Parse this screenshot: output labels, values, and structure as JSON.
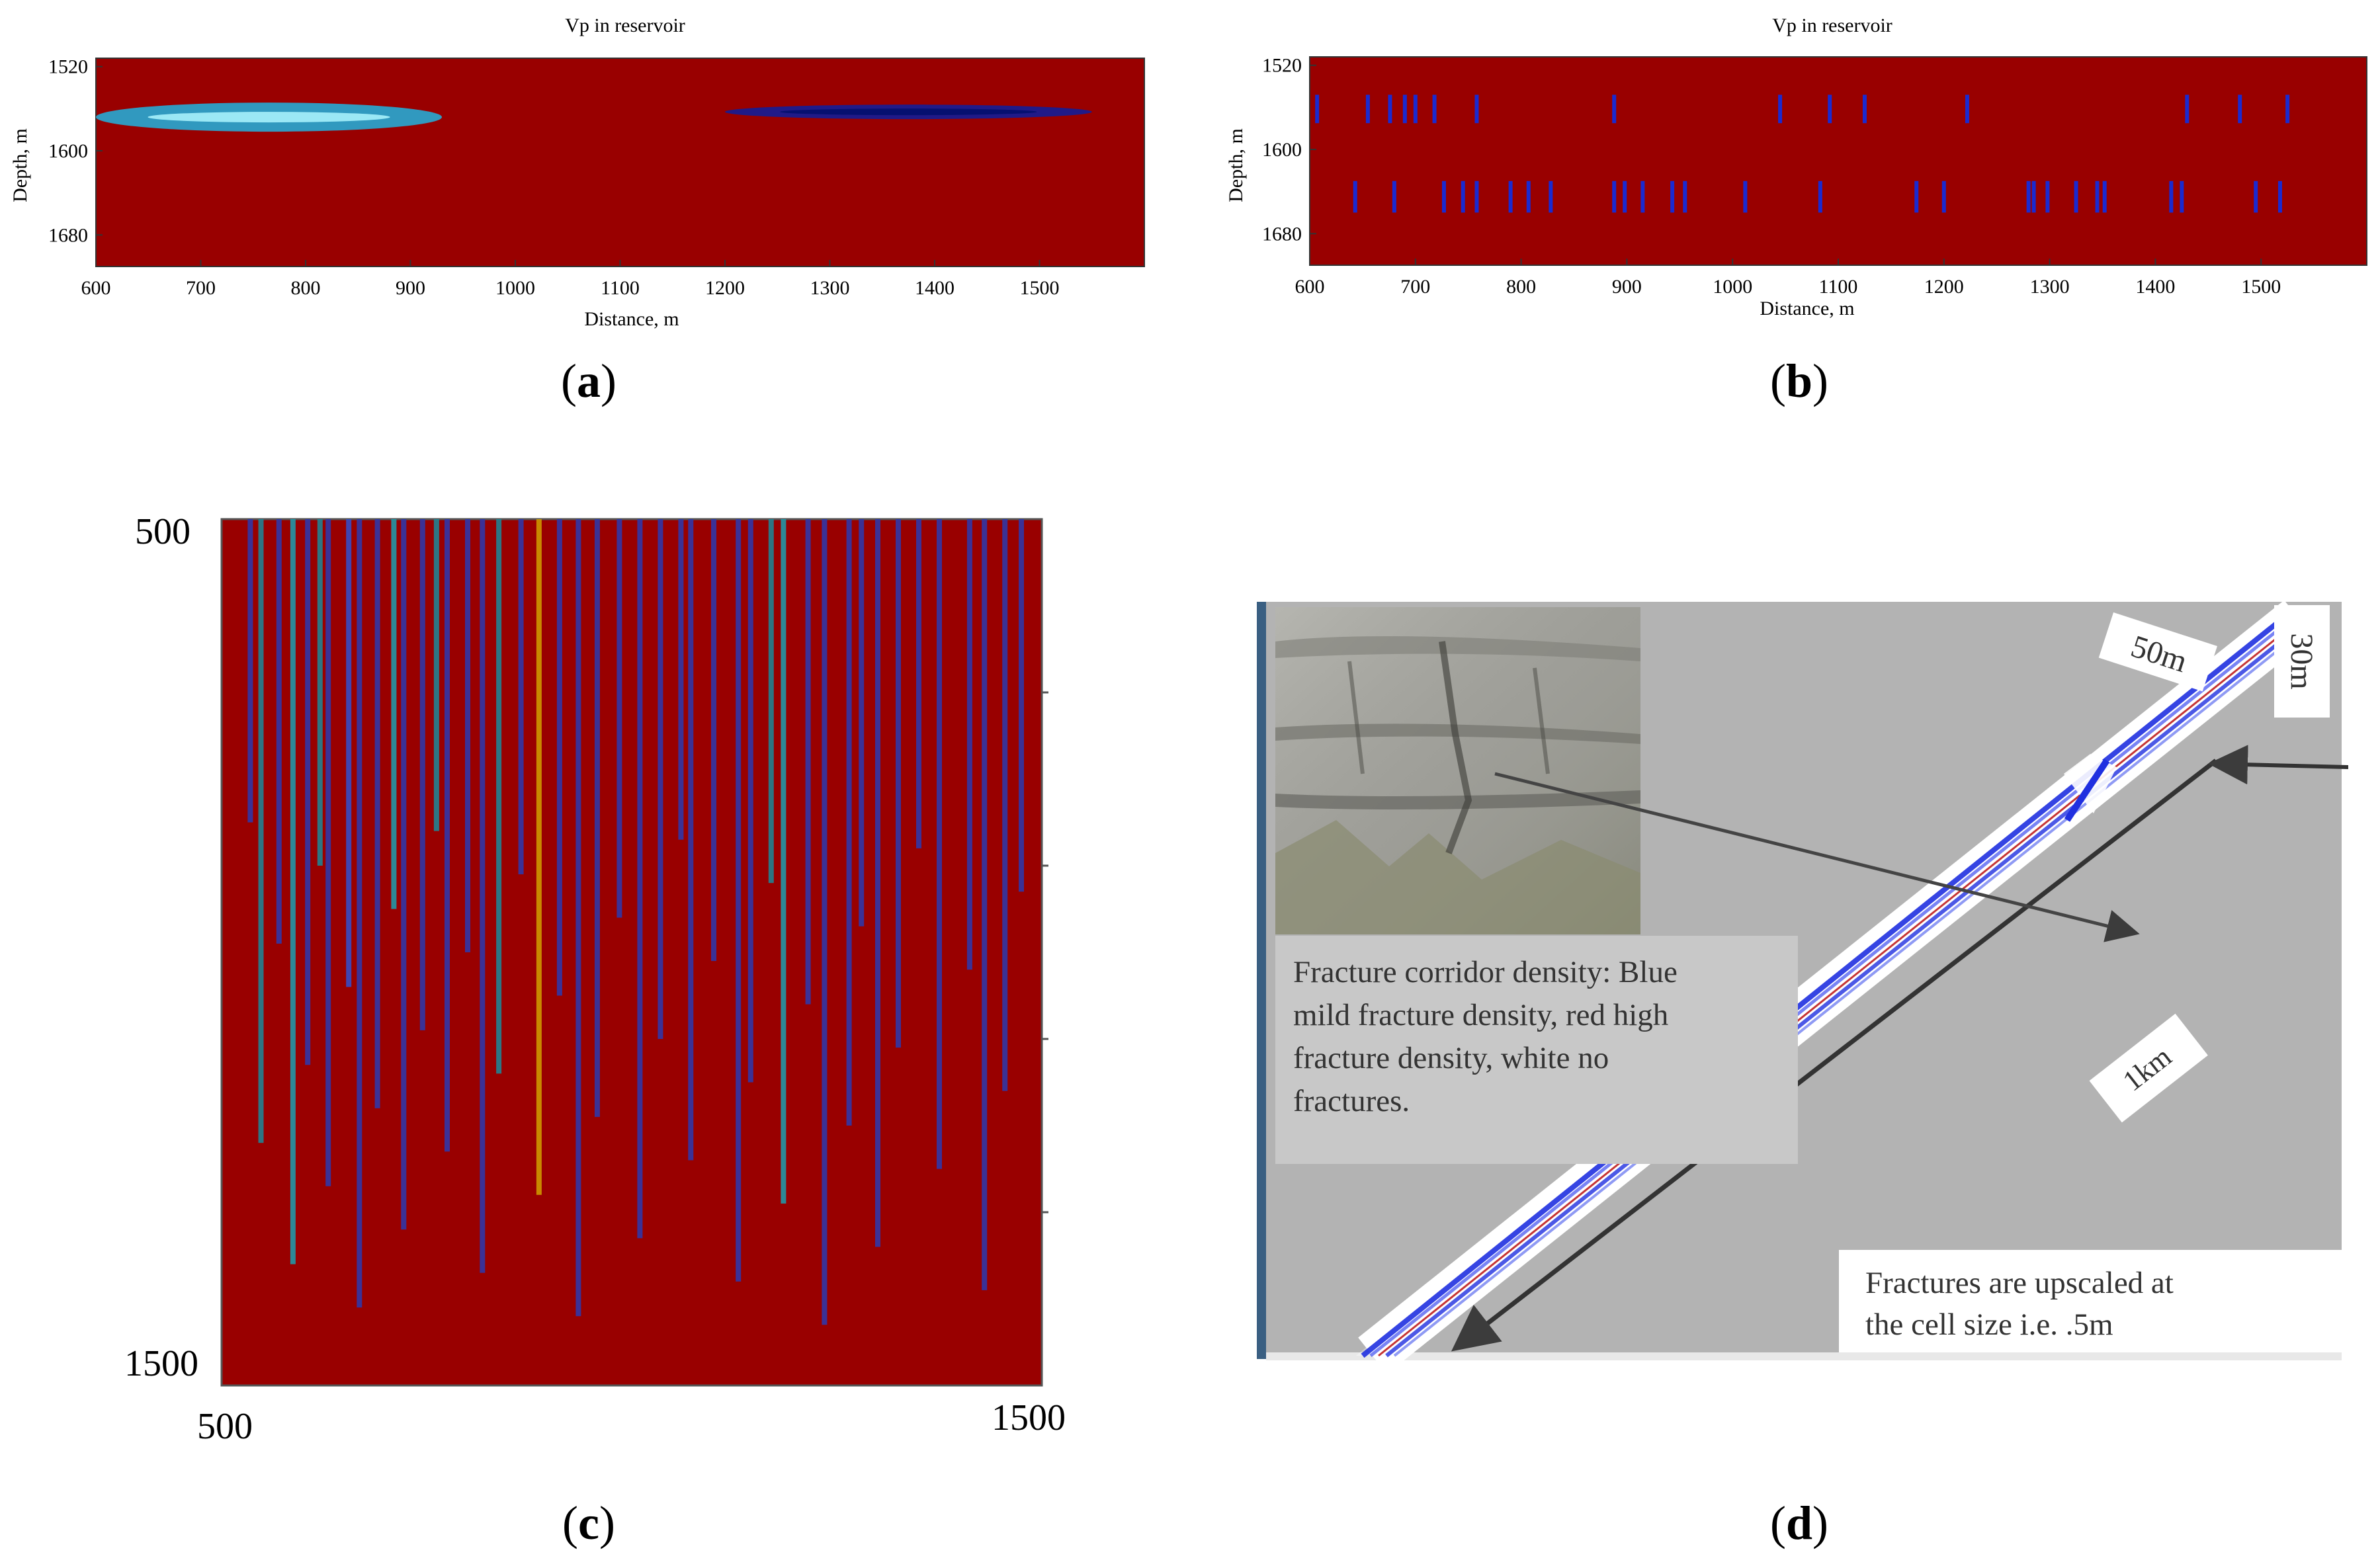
{
  "chart_data": [
    {
      "id": "a",
      "type": "heatmap",
      "title": "Vp in reservoir",
      "xlabel": "Distance, m",
      "ylabel": "Depth, m",
      "xlim": [
        600,
        1600
      ],
      "ylim": [
        1512,
        1710
      ],
      "xticks": [
        600,
        700,
        800,
        900,
        1000,
        1100,
        1200,
        1300,
        1400,
        1500
      ],
      "yticks": [
        1520,
        1600,
        1680
      ],
      "background_color": "#990000",
      "anomalies": [
        {
          "x0": 600,
          "x1": 930,
          "depth": 1568,
          "color": "#1fb4e0"
        },
        {
          "x0": 1200,
          "x1": 1550,
          "depth": 1563,
          "color": "#0a1ea0"
        }
      ]
    },
    {
      "id": "b",
      "type": "heatmap",
      "title": "Vp in reservoir",
      "xlabel": "Distance, m",
      "ylabel": "Depth, m",
      "xlim": [
        600,
        1600
      ],
      "ylim": [
        1512,
        1710
      ],
      "xticks": [
        600,
        700,
        800,
        900,
        1000,
        1100,
        1200,
        1300,
        1400,
        1500
      ],
      "yticks": [
        1520,
        1600,
        1680
      ],
      "background_color": "#990000",
      "fractures_upper_x": [
        607,
        655,
        676,
        690,
        700,
        718,
        758,
        888,
        1045,
        1092,
        1125,
        1222,
        1430,
        1480,
        1525
      ],
      "fractures_lower_x": [
        643,
        680,
        727,
        745,
        758,
        790,
        807,
        828,
        888,
        898,
        915,
        943,
        955,
        1012,
        1083,
        1174,
        1200,
        1280,
        1285,
        1298,
        1325,
        1345,
        1352,
        1415,
        1425,
        1495,
        1518
      ]
    },
    {
      "id": "c",
      "type": "heatmap",
      "xlim": [
        500,
        1500
      ],
      "ylim": [
        500,
        1500
      ],
      "xticks": [
        500,
        1500
      ],
      "yticks": [
        500,
        1500
      ],
      "background_color": "#990000",
      "streaks": [
        {
          "x": 535,
          "color": "#2a3ab0"
        },
        {
          "x": 548,
          "color": "#1a8a9a"
        },
        {
          "x": 570,
          "color": "#2a3ab0"
        },
        {
          "x": 587,
          "color": "#1aa0b0"
        },
        {
          "x": 605,
          "color": "#2a3ab0"
        },
        {
          "x": 620,
          "color": "#1a8a9a"
        },
        {
          "x": 630,
          "color": "#2a3ab0"
        },
        {
          "x": 655,
          "color": "#3050d0"
        },
        {
          "x": 668,
          "color": "#2a3ab0"
        },
        {
          "x": 690,
          "color": "#2a3ab0"
        },
        {
          "x": 710,
          "color": "#1aa0b0"
        },
        {
          "x": 722,
          "color": "#2a3ab0"
        },
        {
          "x": 745,
          "color": "#2a3ab0"
        },
        {
          "x": 762,
          "color": "#1a8a9a"
        },
        {
          "x": 775,
          "color": "#2a3ab0"
        },
        {
          "x": 800,
          "color": "#2a3ab0"
        },
        {
          "x": 818,
          "color": "#2a3ab0"
        },
        {
          "x": 838,
          "color": "#1a8a9a"
        },
        {
          "x": 865,
          "color": "#2a3ab0"
        },
        {
          "x": 887,
          "color": "#d0a000"
        },
        {
          "x": 912,
          "color": "#2a3ab0"
        },
        {
          "x": 935,
          "color": "#2a3ab0"
        },
        {
          "x": 958,
          "color": "#2a3ab0"
        },
        {
          "x": 985,
          "color": "#2a3ab0"
        },
        {
          "x": 1010,
          "color": "#2a3ab0"
        },
        {
          "x": 1035,
          "color": "#2a3ab0"
        },
        {
          "x": 1060,
          "color": "#2a3ab0"
        },
        {
          "x": 1072,
          "color": "#2a3ab0"
        },
        {
          "x": 1100,
          "color": "#2a3ab0"
        },
        {
          "x": 1130,
          "color": "#2a3ab0"
        },
        {
          "x": 1145,
          "color": "#2a3ab0"
        },
        {
          "x": 1170,
          "color": "#1a8a9a"
        },
        {
          "x": 1185,
          "color": "#1aa0b0"
        },
        {
          "x": 1215,
          "color": "#2a3ab0"
        },
        {
          "x": 1235,
          "color": "#2a3ab0"
        },
        {
          "x": 1265,
          "color": "#2a3ab0"
        },
        {
          "x": 1280,
          "color": "#2a3ab0"
        },
        {
          "x": 1300,
          "color": "#2a3ab0"
        },
        {
          "x": 1325,
          "color": "#2a3ab0"
        },
        {
          "x": 1350,
          "color": "#2a3ab0"
        },
        {
          "x": 1375,
          "color": "#2a3ab0"
        },
        {
          "x": 1412,
          "color": "#2a3ab0"
        },
        {
          "x": 1430,
          "color": "#2a3ab0"
        },
        {
          "x": 1455,
          "color": "#2a3ab0"
        },
        {
          "x": 1475,
          "color": "#2a3ab0"
        }
      ]
    }
  ],
  "labels": {
    "a": "a",
    "b": "b",
    "c": "c",
    "d": "d"
  },
  "panel_d": {
    "caption": "Fracture corridor density: Blue mild fracture density, red high fracture density, white no fractures.",
    "caption_lines": [
      "Fracture corridor density: Blue",
      "mild fracture density, red high",
      "fracture density, white no",
      "fractures."
    ],
    "upscale_lines": [
      "Fractures are upscaled  at",
      "the cell size i.e. .5m"
    ],
    "dim_width": "50m",
    "dim_height": "30m",
    "dim_length": "1km",
    "colors": {
      "background": "#b3b3b3",
      "left_bar": "#3a5f82",
      "mild": "#2030e0",
      "high": "#c02020"
    }
  }
}
